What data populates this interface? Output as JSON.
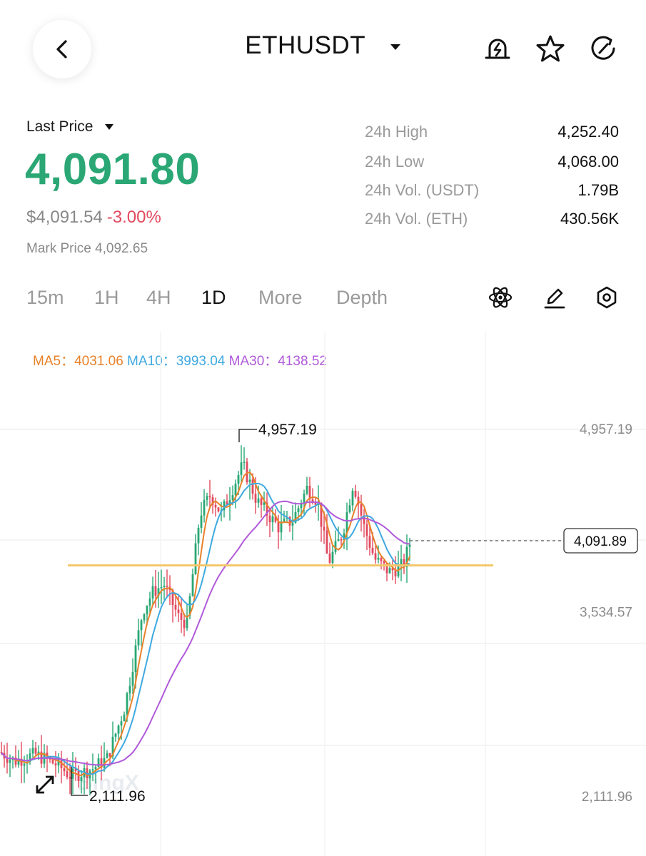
{
  "header": {
    "back_icon": "chevron-left-icon",
    "pair": "ETHUSDT",
    "icons": [
      "alert-bell-icon",
      "favorite-star-icon",
      "share-icon"
    ]
  },
  "price": {
    "last_label": "Last Price",
    "last_price": "4,091.80",
    "usd_price": "$4,091.54",
    "change": "-3.00%",
    "mark_price": "Mark Price 4,092.65",
    "colors": {
      "up": "#2aa774",
      "down": "#e2495e"
    }
  },
  "stats": [
    {
      "label": "24h High",
      "value": "4,252.40"
    },
    {
      "label": "24h Low",
      "value": "4,068.00"
    },
    {
      "label": "24h Vol. (USDT)",
      "value": "1.79B"
    },
    {
      "label": "24h Vol. (ETH)",
      "value": "430.56K"
    }
  ],
  "tabs": [
    {
      "label": "15m",
      "active": false
    },
    {
      "label": "1H",
      "active": false
    },
    {
      "label": "4H",
      "active": false
    },
    {
      "label": "1D",
      "active": true
    },
    {
      "label": "More",
      "active": false
    },
    {
      "label": "Depth",
      "active": false
    }
  ],
  "tool_icons": [
    "indicator-atom-icon",
    "draw-pencil-icon",
    "settings-hexagon-icon"
  ],
  "ma": {
    "ma5_label": "MA5：",
    "ma5_value": "4031.06",
    "ma5_color": "#e8822a",
    "ma10_label": "MA10：",
    "ma10_value": "3993.04",
    "ma10_color": "#3fa9df",
    "ma30_label": "MA30：",
    "ma30_value": "4138.52",
    "ma30_color": "#b05ad9"
  },
  "chart_data": {
    "type": "candlestick",
    "y_axis_labels": [
      "4,957.19",
      "3,534.57",
      "2,111.96"
    ],
    "y_range": [
      2111.96,
      4957.19
    ],
    "high_marker": "4,957.19",
    "low_marker": "2,111.96",
    "current_price_label": "4,091.89",
    "support_line_price": 3900,
    "support_line_color": "#f2c76a",
    "watermark": "BingX",
    "gridlines": true,
    "candle_colors": {
      "up": "#2aa774",
      "down": "#e2495e"
    }
  }
}
